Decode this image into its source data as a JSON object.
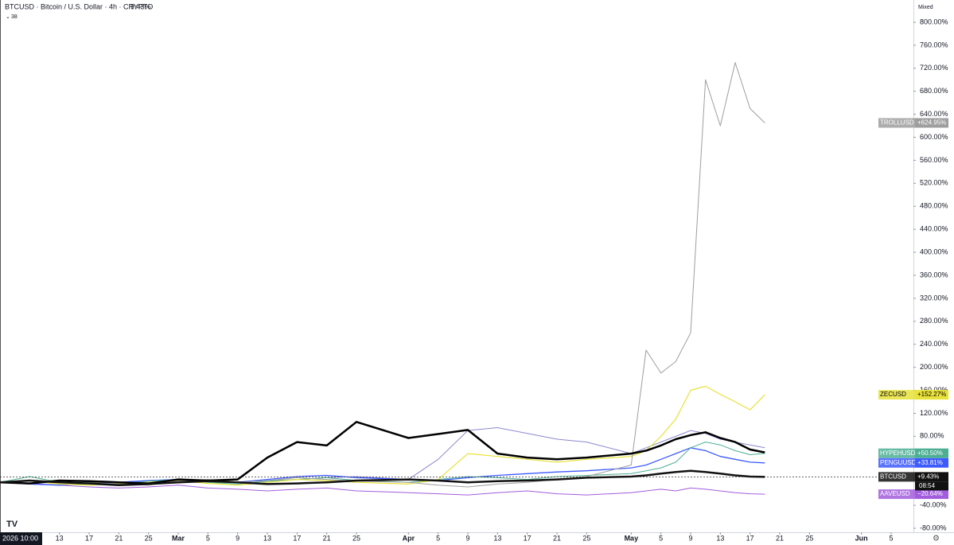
{
  "chart_data": {
    "type": "line",
    "title": "BTCUSD · Bitcoin / U.S. Dollar · 4h · CRYPTO",
    "title_change": "9.43%",
    "indicator_count": "38",
    "scale_mode": "Mixed",
    "time_label": "2026 10:00",
    "countdown": "08:54",
    "x": [
      "2026-02-05",
      "2026-02-09",
      "2026-02-13",
      "2026-02-17",
      "2026-02-21",
      "2026-02-25",
      "2026-03-01",
      "2026-03-05",
      "2026-03-09",
      "2026-03-13",
      "2026-03-17",
      "2026-03-21",
      "2026-03-25",
      "2026-04-01",
      "2026-04-05",
      "2026-04-09",
      "2026-04-13",
      "2026-04-17",
      "2026-04-21",
      "2026-04-25",
      "2026-05-01",
      "2026-05-03",
      "2026-05-05",
      "2026-05-07",
      "2026-05-09",
      "2026-05-11",
      "2026-05-13",
      "2026-05-15",
      "2026-05-17",
      "2026-05-19"
    ],
    "xlim": [
      "2026-02-05",
      "2026-06-08"
    ],
    "xticks": [
      {
        "value": "2026-02-13",
        "label": "13"
      },
      {
        "value": "2026-02-17",
        "label": "17"
      },
      {
        "value": "2026-02-21",
        "label": "21"
      },
      {
        "value": "2026-02-25",
        "label": "25"
      },
      {
        "value": "2026-03-01",
        "label": "Mar"
      },
      {
        "value": "2026-03-05",
        "label": "5"
      },
      {
        "value": "2026-03-09",
        "label": "9"
      },
      {
        "value": "2026-03-13",
        "label": "13"
      },
      {
        "value": "2026-03-17",
        "label": "17"
      },
      {
        "value": "2026-03-21",
        "label": "21"
      },
      {
        "value": "2026-03-25",
        "label": "25"
      },
      {
        "value": "2026-04-01",
        "label": "Apr"
      },
      {
        "value": "2026-04-05",
        "label": "5"
      },
      {
        "value": "2026-04-09",
        "label": "9"
      },
      {
        "value": "2026-04-13",
        "label": "13"
      },
      {
        "value": "2026-04-17",
        "label": "17"
      },
      {
        "value": "2026-04-21",
        "label": "21"
      },
      {
        "value": "2026-04-25",
        "label": "25"
      },
      {
        "value": "2026-05-01",
        "label": "May"
      },
      {
        "value": "2026-05-05",
        "label": "5"
      },
      {
        "value": "2026-05-09",
        "label": "9"
      },
      {
        "value": "2026-05-13",
        "label": "13"
      },
      {
        "value": "2026-05-17",
        "label": "17"
      },
      {
        "value": "2026-05-21",
        "label": "21"
      },
      {
        "value": "2026-05-25",
        "label": "25"
      },
      {
        "value": "2026-06-01",
        "label": "Jun"
      },
      {
        "value": "2026-06-05",
        "label": "5"
      }
    ],
    "ylim": [
      -86.9,
      838.7
    ],
    "yticks": [
      {
        "value": 800,
        "label": "800.00%"
      },
      {
        "value": 760,
        "label": "760.00%"
      },
      {
        "value": 720,
        "label": "720.00%"
      },
      {
        "value": 680,
        "label": "680.00%"
      },
      {
        "value": 640,
        "label": "640.00%"
      },
      {
        "value": 600,
        "label": "600.00%"
      },
      {
        "value": 560,
        "label": "560.00%"
      },
      {
        "value": 520,
        "label": "520.00%"
      },
      {
        "value": 480,
        "label": "480.00%"
      },
      {
        "value": 440,
        "label": "440.00%"
      },
      {
        "value": 400,
        "label": "400.00%"
      },
      {
        "value": 360,
        "label": "360.00%"
      },
      {
        "value": 320,
        "label": "320.00%"
      },
      {
        "value": 280,
        "label": "280.00%"
      },
      {
        "value": 240,
        "label": "240.00%"
      },
      {
        "value": 200,
        "label": "200.00%"
      },
      {
        "value": 160,
        "label": "160.00%"
      },
      {
        "value": 120,
        "label": "120.00%"
      },
      {
        "value": 80,
        "label": "80.00%"
      },
      {
        "value": -40,
        "label": "-40.00%"
      },
      {
        "value": -80,
        "label": "-80.00%"
      }
    ],
    "grid": false,
    "series": [
      {
        "color": "#8c88cc",
        "width": 1,
        "values": [
          0,
          2,
          0,
          -2,
          0,
          3,
          5,
          2,
          0,
          3,
          5,
          8,
          10,
          5,
          40,
          90,
          95,
          85,
          75,
          70,
          50,
          60,
          70,
          80,
          90,
          85,
          75,
          70,
          65,
          60
        ]
      },
      {
        "name": "AAVEUSD",
        "color": "#a25ddc",
        "width": 1,
        "values": [
          0,
          -2,
          -5,
          -8,
          -10,
          -8,
          -5,
          -10,
          -12,
          -15,
          -12,
          -10,
          -15,
          -18,
          -20,
          -22,
          -18,
          -15,
          -20,
          -22,
          -18,
          -15,
          -12,
          -15,
          -10,
          -12,
          -15,
          -18,
          -20,
          -20.64
        ],
        "value_labels": [
          null,
          null,
          null,
          null,
          null,
          null,
          null,
          null,
          null,
          null,
          null,
          null,
          null,
          null,
          null,
          null,
          null,
          null,
          null,
          null,
          null,
          null,
          null,
          null,
          null,
          null,
          null,
          null,
          null,
          "−20.64%"
        ]
      },
      {
        "name": "PENGUUSDT",
        "color": "#3d5afe",
        "width": 1.3,
        "values": [
          0,
          -3,
          -5,
          -2,
          0,
          3,
          5,
          2,
          0,
          5,
          10,
          12,
          8,
          5,
          3,
          8,
          12,
          15,
          18,
          20,
          25,
          30,
          40,
          50,
          60,
          55,
          45,
          40,
          35,
          33.81
        ],
        "value_labels": [
          null,
          null,
          null,
          null,
          null,
          null,
          null,
          null,
          null,
          null,
          null,
          null,
          null,
          null,
          null,
          null,
          null,
          null,
          null,
          null,
          null,
          null,
          null,
          null,
          null,
          null,
          null,
          null,
          null,
          "+33.81%"
        ]
      },
      {
        "name": "HYPEHUSD",
        "color": "#4caf93",
        "width": 1,
        "values": [
          0,
          10,
          0,
          -5,
          -3,
          2,
          5,
          0,
          -3,
          2,
          5,
          8,
          3,
          0,
          5,
          10,
          8,
          5,
          10,
          12,
          15,
          20,
          25,
          35,
          60,
          70,
          65,
          55,
          48,
          50.5
        ],
        "value_labels": [
          null,
          null,
          null,
          null,
          null,
          null,
          null,
          null,
          null,
          null,
          null,
          null,
          null,
          null,
          null,
          null,
          null,
          null,
          null,
          null,
          null,
          null,
          null,
          null,
          null,
          null,
          null,
          null,
          null,
          "+50.50%"
        ]
      },
      {
        "name": "ZECUSD",
        "color": "#e8e23a",
        "width": 1.2,
        "values": [
          0,
          2,
          -3,
          -5,
          -2,
          0,
          3,
          -2,
          -5,
          0,
          5,
          3,
          0,
          -3,
          5,
          50,
          45,
          40,
          35,
          40,
          45,
          55,
          80,
          110,
          160,
          167,
          153,
          140,
          126,
          152.27
        ],
        "value_labels": [
          null,
          null,
          null,
          null,
          null,
          null,
          null,
          null,
          null,
          null,
          null,
          null,
          null,
          null,
          null,
          null,
          null,
          null,
          null,
          null,
          null,
          null,
          null,
          null,
          null,
          null,
          null,
          null,
          null,
          "+152.27%"
        ]
      },
      {
        "name": "TROLLUSD",
        "color": "#9e9e9e",
        "width": 1,
        "values": [
          0,
          -2,
          3,
          0,
          -3,
          -5,
          2,
          5,
          0,
          3,
          8,
          5,
          2,
          0,
          -5,
          -8,
          -3,
          0,
          5,
          10,
          30,
          230,
          190,
          210,
          260,
          700,
          620,
          730,
          650,
          624.95
        ],
        "value_labels": [
          null,
          null,
          null,
          null,
          null,
          null,
          null,
          null,
          null,
          null,
          null,
          null,
          null,
          null,
          null,
          null,
          null,
          null,
          null,
          null,
          null,
          null,
          null,
          null,
          null,
          null,
          null,
          null,
          null,
          "+624.95%"
        ]
      },
      {
        "color": "#000000",
        "width": 2.5,
        "values": [
          0,
          -2,
          3,
          2,
          0,
          -2,
          5,
          3,
          5,
          43,
          70,
          64,
          105,
          77,
          84,
          91,
          50,
          43,
          40,
          43,
          50,
          55,
          64,
          75,
          82,
          87,
          77,
          70,
          57,
          52
        ]
      },
      {
        "name": "BTCUSD",
        "color": "#111111",
        "width": 2.5,
        "values": [
          0,
          3,
          0,
          -2,
          -5,
          -3,
          0,
          2,
          0,
          -3,
          -2,
          0,
          3,
          5,
          3,
          0,
          2,
          3,
          5,
          8,
          10,
          12,
          15,
          18,
          20,
          18,
          15,
          12,
          10,
          9.43
        ],
        "value_labels": [
          null,
          null,
          null,
          null,
          null,
          null,
          null,
          null,
          null,
          null,
          null,
          null,
          null,
          null,
          null,
          null,
          null,
          null,
          null,
          null,
          null,
          null,
          null,
          null,
          null,
          null,
          null,
          null,
          null,
          "+9.43%"
        ]
      }
    ]
  }
}
